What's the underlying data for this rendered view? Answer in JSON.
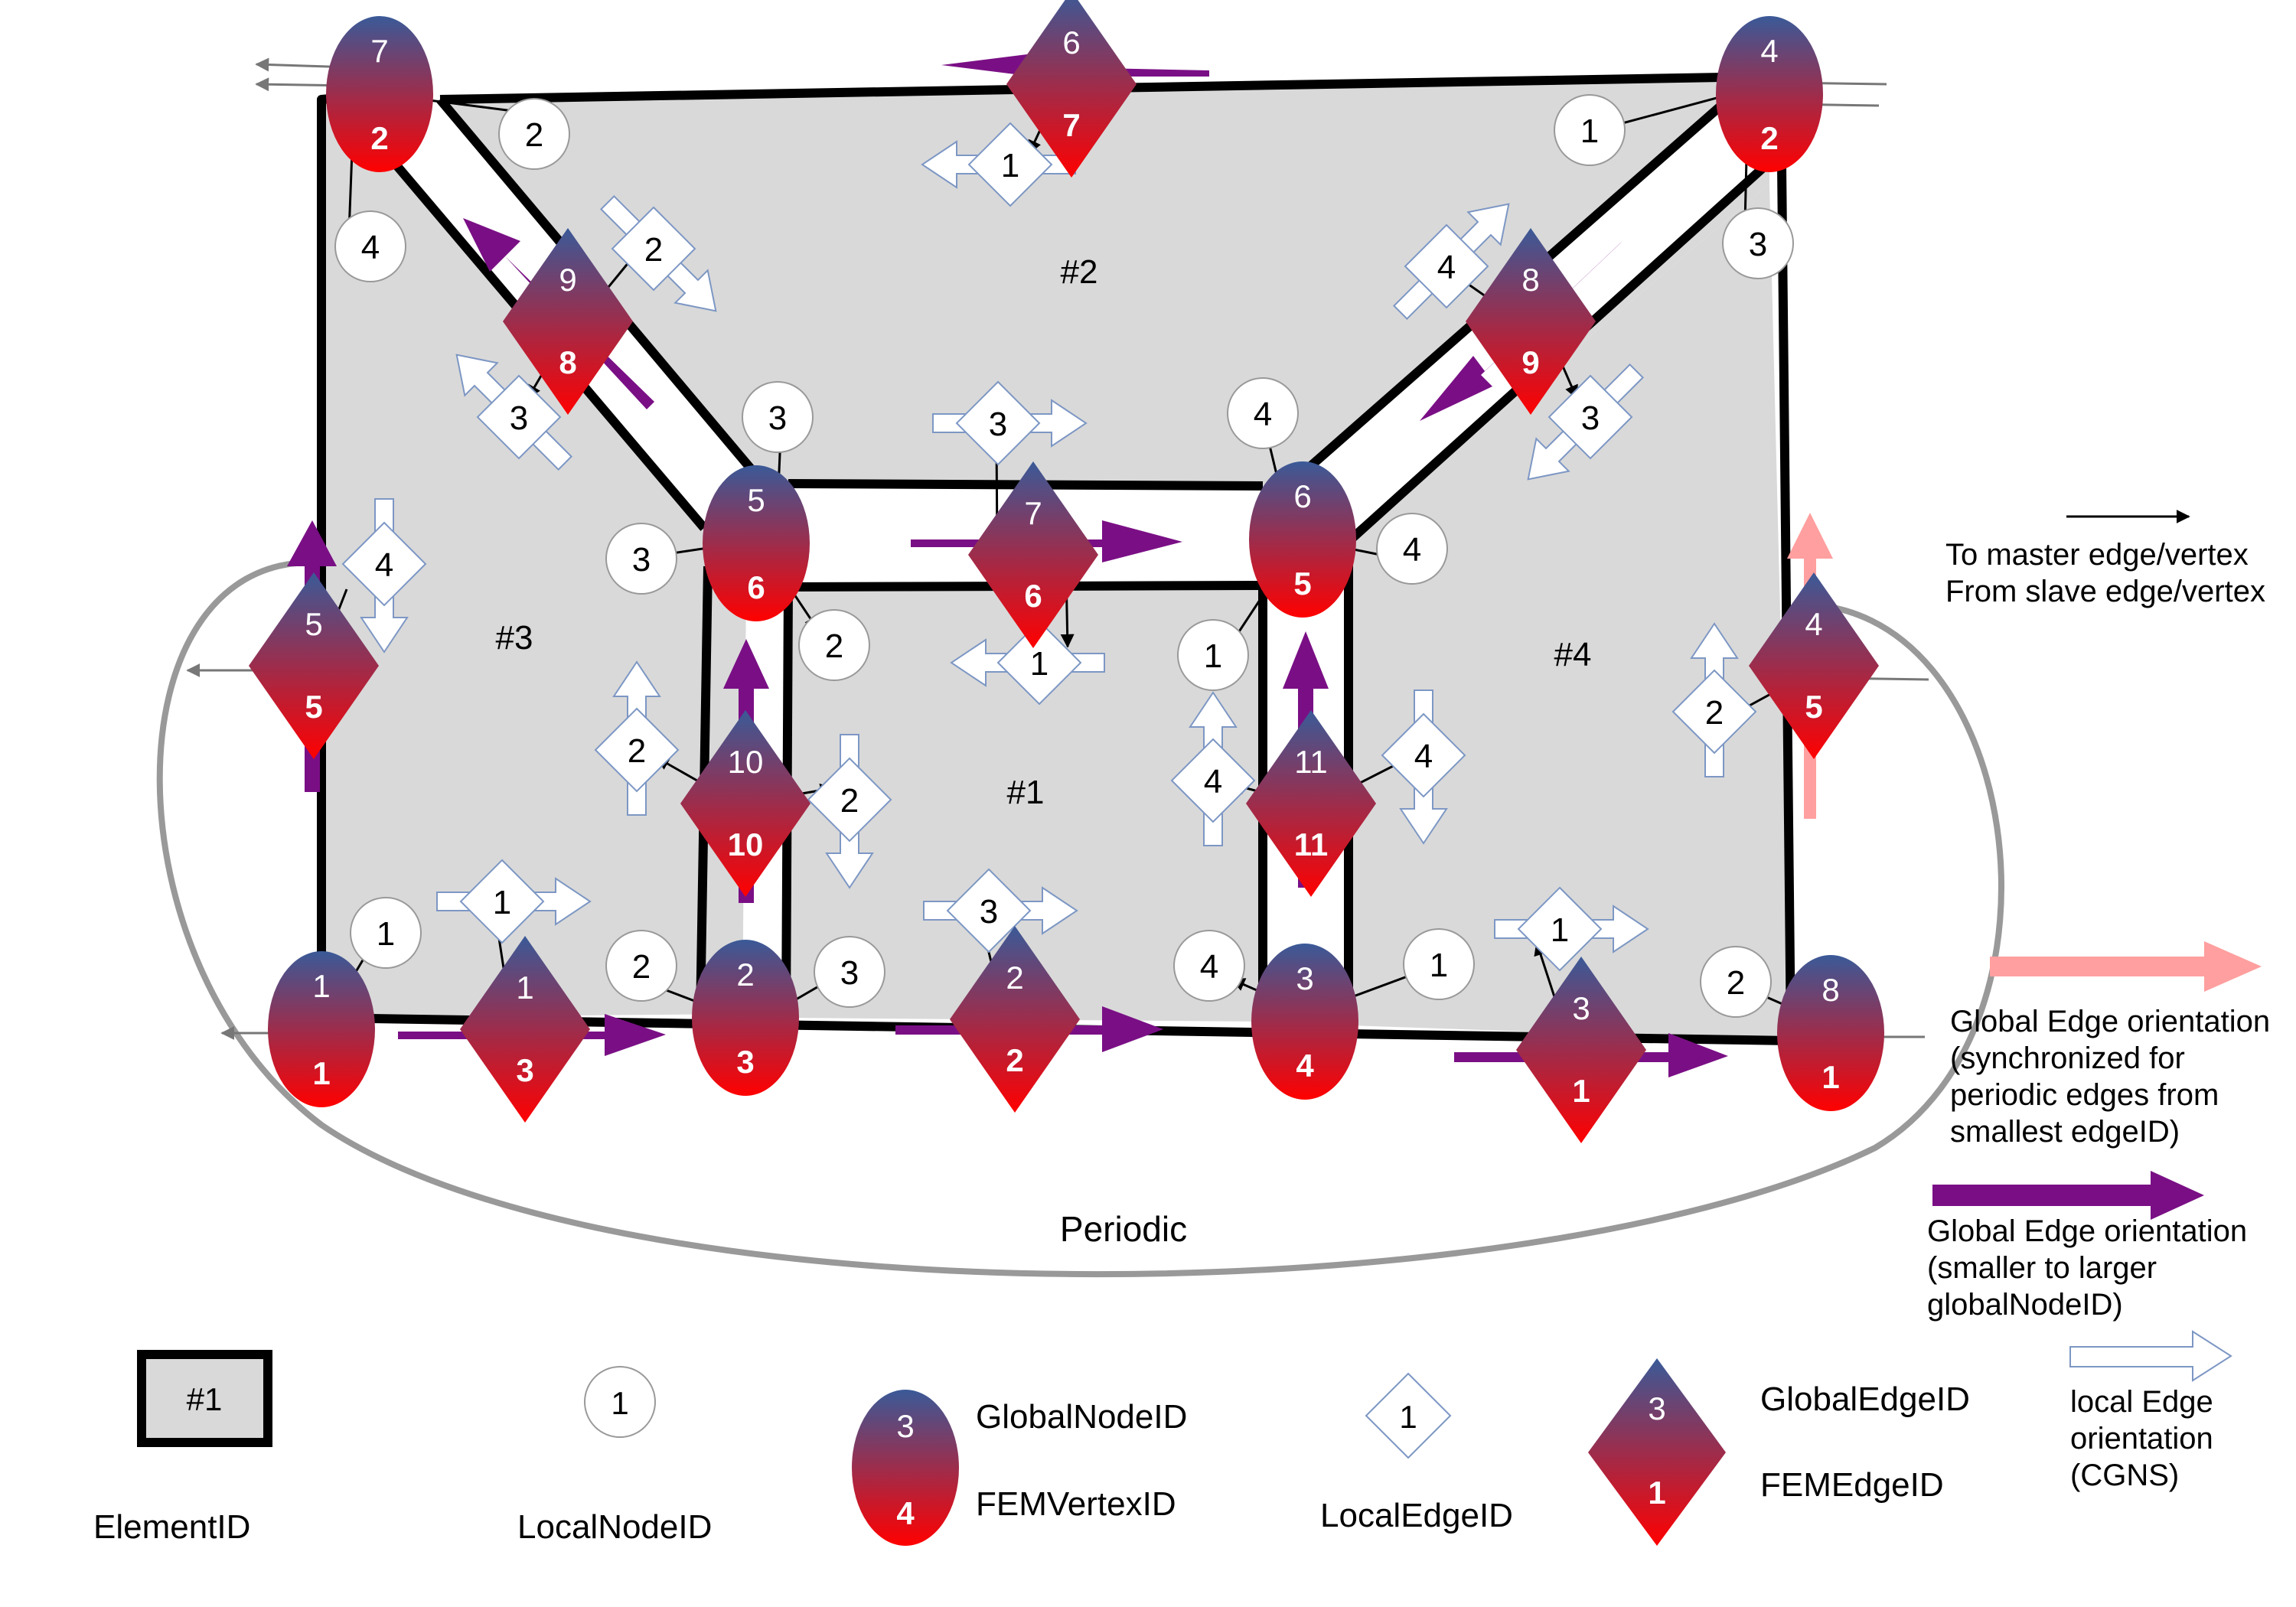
{
  "elements": [
    {
      "id": "#1",
      "pos": [
        1340,
        1050
      ]
    },
    {
      "id": "#2",
      "pos": [
        1410,
        370
      ]
    },
    {
      "id": "#3",
      "pos": [
        672,
        848
      ]
    },
    {
      "id": "#4",
      "pos": [
        2055,
        870
      ]
    }
  ],
  "nodes": [
    {
      "g": "1",
      "f": "1",
      "pos": [
        420,
        1345
      ]
    },
    {
      "g": "2",
      "f": "3",
      "pos": [
        974,
        1330
      ]
    },
    {
      "g": "3",
      "f": "4",
      "pos": [
        1705,
        1335
      ]
    },
    {
      "g": "8",
      "f": "1",
      "pos": [
        2392,
        1350
      ]
    },
    {
      "g": "5",
      "f": "6",
      "pos": [
        988,
        710
      ]
    },
    {
      "g": "6",
      "f": "5",
      "pos": [
        1702,
        705
      ]
    },
    {
      "g": "7",
      "f": "2",
      "pos": [
        496,
        123
      ]
    },
    {
      "g": "4",
      "f": "2",
      "pos": [
        2312,
        123
      ]
    }
  ],
  "edges": [
    {
      "g": "1",
      "f": "3",
      "pos": [
        686,
        1345
      ]
    },
    {
      "g": "2",
      "f": "2",
      "pos": [
        1326,
        1332
      ]
    },
    {
      "g": "3",
      "f": "1",
      "pos": [
        2066,
        1372
      ]
    },
    {
      "g": "5",
      "f": "5",
      "pos": [
        410,
        870
      ]
    },
    {
      "g": "4",
      "f": "5",
      "pos": [
        2370,
        870
      ]
    },
    {
      "g": "10",
      "f": "10",
      "pos": [
        974,
        1050
      ]
    },
    {
      "g": "11",
      "f": "11",
      "pos": [
        1713,
        1050
      ]
    },
    {
      "g": "7",
      "f": "6",
      "pos": [
        1350,
        725
      ]
    },
    {
      "g": "9",
      "f": "8",
      "pos": [
        742,
        420
      ]
    },
    {
      "g": "8",
      "f": "9",
      "pos": [
        2000,
        420
      ]
    },
    {
      "g": "6",
      "f": "7",
      "pos": [
        1400,
        110
      ]
    }
  ],
  "local_nodes": [
    {
      "v": "1",
      "pos": [
        504,
        1219
      ]
    },
    {
      "v": "2",
      "pos": [
        838,
        1262
      ]
    },
    {
      "v": "3",
      "pos": [
        1110,
        1270
      ]
    },
    {
      "v": "4",
      "pos": [
        1580,
        1262
      ]
    },
    {
      "v": "1",
      "pos": [
        1880,
        1260
      ]
    },
    {
      "v": "2",
      "pos": [
        2268,
        1283
      ]
    },
    {
      "v": "2",
      "pos": [
        698,
        175
      ]
    },
    {
      "v": "4",
      "pos": [
        484,
        322
      ]
    },
    {
      "v": "3",
      "pos": [
        1016,
        545
      ]
    },
    {
      "v": "3",
      "pos": [
        838,
        730
      ]
    },
    {
      "v": "2",
      "pos": [
        1090,
        843
      ]
    },
    {
      "v": "4",
      "pos": [
        1650,
        540
      ]
    },
    {
      "v": "4",
      "pos": [
        1845,
        717
      ]
    },
    {
      "v": "1",
      "pos": [
        1585,
        856
      ]
    },
    {
      "v": "1",
      "pos": [
        2077,
        170
      ]
    },
    {
      "v": "3",
      "pos": [
        2297,
        318
      ]
    }
  ],
  "local_edges": [
    {
      "v": "1",
      "pos": [
        656,
        1178
      ],
      "dir": "r"
    },
    {
      "v": "3",
      "pos": [
        1292,
        1190
      ],
      "dir": "r"
    },
    {
      "v": "1",
      "pos": [
        2038,
        1214
      ],
      "dir": "r"
    },
    {
      "v": "4",
      "pos": [
        502,
        737
      ],
      "dir": "d"
    },
    {
      "v": "2",
      "pos": [
        832,
        980
      ],
      "dir": "u"
    },
    {
      "v": "2",
      "pos": [
        1110,
        1045
      ],
      "dir": "d"
    },
    {
      "v": "4",
      "pos": [
        1585,
        1020
      ],
      "dir": "u"
    },
    {
      "v": "4",
      "pos": [
        1860,
        987
      ],
      "dir": "d"
    },
    {
      "v": "2",
      "pos": [
        2240,
        930
      ],
      "dir": "u"
    },
    {
      "v": "1",
      "pos": [
        1320,
        215
      ],
      "dir": "l"
    },
    {
      "v": "2",
      "pos": [
        854,
        325
      ],
      "dir": "dr"
    },
    {
      "v": "3",
      "pos": [
        678,
        545
      ],
      "dir": "ul"
    },
    {
      "v": "3",
      "pos": [
        1304,
        553
      ],
      "dir": "r"
    },
    {
      "v": "1",
      "pos": [
        1358,
        866
      ],
      "dir": "l"
    },
    {
      "v": "4",
      "pos": [
        1890,
        348
      ],
      "dir": "ur"
    },
    {
      "v": "3",
      "pos": [
        2078,
        545
      ],
      "dir": "dl"
    }
  ],
  "labels": {
    "periodic": "Periodic",
    "master_line1": "To master edge/vertex",
    "master_line2": "From slave edge/vertex",
    "pink_l1": "Global Edge orientation",
    "pink_l2": "(synchronized for",
    "pink_l3": "periodic edges from",
    "pink_l4": "smallest edgeID)",
    "purple_l1": "Global Edge orientation",
    "purple_l2": "(smaller to larger",
    "purple_l3": "globalNodeID)",
    "local_l1": "local Edge",
    "local_l2": "orientation",
    "local_l3": "(CGNS)"
  },
  "legend": {
    "element_sample": "#1",
    "element_label": "ElementID",
    "localnode_sample": "1",
    "localnode_label": "LocalNodeID",
    "node_g": "3",
    "node_f": "4",
    "globalnode_label": "GlobalNodeID",
    "femvertex_label": "FEMVertexID",
    "localedge_sample": "1",
    "localedge_label": "LocalEdgeID",
    "edge_g": "3",
    "edge_f": "1",
    "globaledge_label": "GlobalEdgeID",
    "femedge_label": "FEMEdgeID"
  },
  "colors": {
    "top": "#3a5a98",
    "bottom": "#ff0000",
    "purple": "#7a0f85",
    "pink": "#ff9f9f",
    "fill": "#d9d9d9",
    "gray_curve": "#999999"
  }
}
